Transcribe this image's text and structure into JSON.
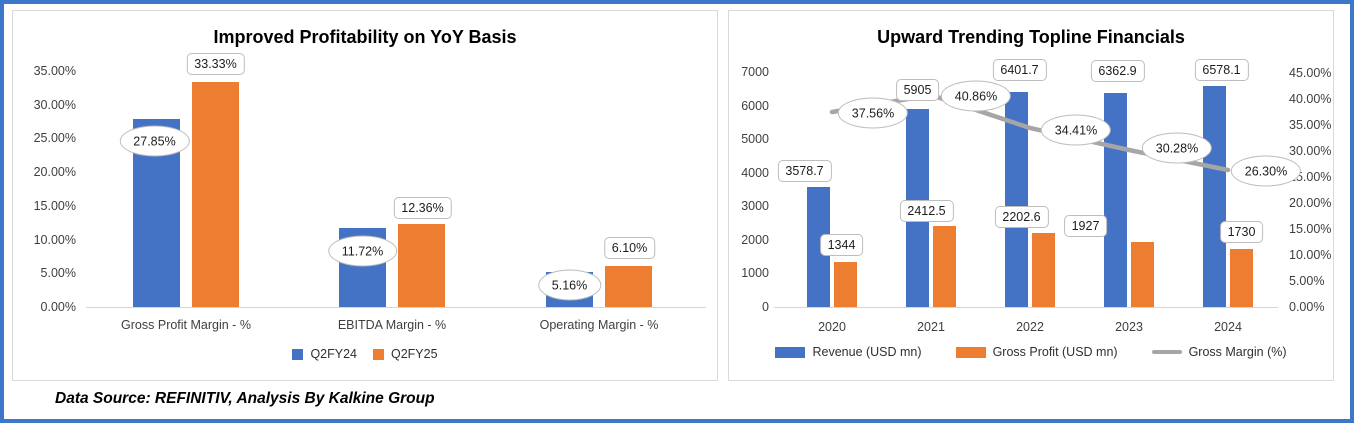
{
  "footer": {
    "text": "Data Source: REFINITIV, Analysis By Kalkine Group"
  },
  "colors": {
    "bar_blue": "#4472C4",
    "bar_orange": "#ED7D31",
    "line_gray": "#A6A6A6",
    "frame_blue": "#3C78C8",
    "panel_border": "#D9D9D9",
    "axis_text": "#3f3f3f"
  },
  "chart_data": [
    {
      "type": "bar",
      "title": "Improved Profitability on YoY Basis",
      "categories": [
        "Gross Profit Margin - %",
        "EBITDA Margin - %",
        "Operating Margin - %"
      ],
      "series": [
        {
          "name": "Q2FY24",
          "color_key": "bar_blue",
          "values": [
            27.85,
            11.72,
            5.16
          ],
          "labels": [
            "27.85%",
            "11.72%",
            "5.16%"
          ],
          "callout_shape": "oval"
        },
        {
          "name": "Q2FY25",
          "color_key": "bar_orange",
          "values": [
            33.33,
            12.36,
            6.1
          ],
          "labels": [
            "33.33%",
            "12.36%",
            "6.10%"
          ],
          "callout_shape": "rect"
        }
      ],
      "y_axis": {
        "ticks": [
          "35.00%",
          "30.00%",
          "25.00%",
          "20.00%",
          "15.00%",
          "10.00%",
          "5.00%",
          "0.00%"
        ],
        "min": 0,
        "max": 35
      },
      "legend_position": "bottom",
      "gridlines": false
    },
    {
      "type": "combo",
      "title": "Upward Trending Topline Financials",
      "categories": [
        "2020",
        "2021",
        "2022",
        "2023",
        "2024"
      ],
      "series": [
        {
          "name": "Revenue (USD mn)",
          "type": "bar",
          "axis": "left",
          "color_key": "bar_blue",
          "values": [
            3578.7,
            5905,
            6401.7,
            6362.9,
            6578.1
          ],
          "labels": [
            "3578.7",
            "5905",
            "6401.7",
            "6362.9",
            "6578.1"
          ],
          "callout_shape": "rect"
        },
        {
          "name": "Gross Profit (USD mn)",
          "type": "bar",
          "axis": "left",
          "color_key": "bar_orange",
          "values": [
            1344,
            2412.5,
            2202.6,
            1927,
            1730
          ],
          "labels": [
            "1344",
            "2412.5",
            "2202.6",
            "1927",
            "1730"
          ],
          "callout_shape": "rect"
        },
        {
          "name": "Gross Margin (%)",
          "type": "line",
          "axis": "right",
          "color_key": "line_gray",
          "values": [
            37.56,
            40.86,
            34.41,
            30.28,
            26.3
          ],
          "labels": [
            "37.56%",
            "40.86%",
            "34.41%",
            "30.28%",
            "26.30%"
          ],
          "callout_shape": "oval"
        }
      ],
      "left_axis": {
        "ticks": [
          "7000",
          "6000",
          "5000",
          "4000",
          "3000",
          "2000",
          "1000",
          "0"
        ],
        "min": 0,
        "max": 7000
      },
      "right_axis": {
        "ticks": [
          "45.00%",
          "40.00%",
          "35.00%",
          "30.00%",
          "25.00%",
          "20.00%",
          "15.00%",
          "10.00%",
          "5.00%",
          "0.00%"
        ],
        "min": 0,
        "max": 45
      },
      "legend_position": "bottom",
      "gridlines": false
    }
  ]
}
